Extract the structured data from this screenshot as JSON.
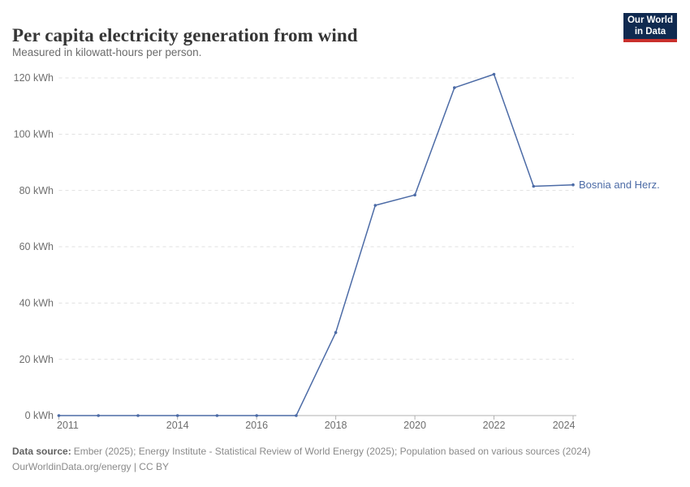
{
  "header": {
    "title": "Per capita electricity generation from wind",
    "subtitle": "Measured in kilowatt-hours per person."
  },
  "logo": {
    "line1": "Our World",
    "line2": "in Data"
  },
  "footer": {
    "source_label": "Data source:",
    "source_text": "Ember (2025); Energy Institute - Statistical Review of World Energy (2025); Population based on various sources (2024)",
    "license_line": "OurWorldinData.org/energy | CC BY"
  },
  "colors": {
    "series_blue": "#4c6ba6",
    "grid": "#e0e0e0",
    "axis": "#b0b0b0",
    "tick_text": "#6e6e6e",
    "logo_navy": "#102a50",
    "logo_red": "#c9302c"
  },
  "chart_data": {
    "type": "line",
    "title": "Per capita electricity generation from wind",
    "subtitle": "Measured in kilowatt-hours per person.",
    "x": [
      2011,
      2012,
      2013,
      2014,
      2015,
      2016,
      2017,
      2018,
      2019,
      2020,
      2021,
      2022,
      2023,
      2024
    ],
    "series": [
      {
        "name": "Bosnia and Herz.",
        "color": "#4c6ba6",
        "values": [
          0,
          0,
          0,
          0,
          0,
          0,
          0,
          29.5,
          74.7,
          78.4,
          116.5,
          121.3,
          81.5,
          82
        ]
      }
    ],
    "x_ticks": [
      2011,
      2014,
      2016,
      2018,
      2020,
      2022,
      2024
    ],
    "y_ticks": [
      0,
      20,
      40,
      60,
      80,
      100,
      120
    ],
    "y_tick_suffix": " kWh",
    "xlim": [
      2011,
      2024
    ],
    "ylim": [
      0,
      120
    ],
    "grid": "horizontal dashed gridlines",
    "legend": "series label at right end of line",
    "xlabel": "",
    "ylabel": "kilowatt-hours per person"
  }
}
